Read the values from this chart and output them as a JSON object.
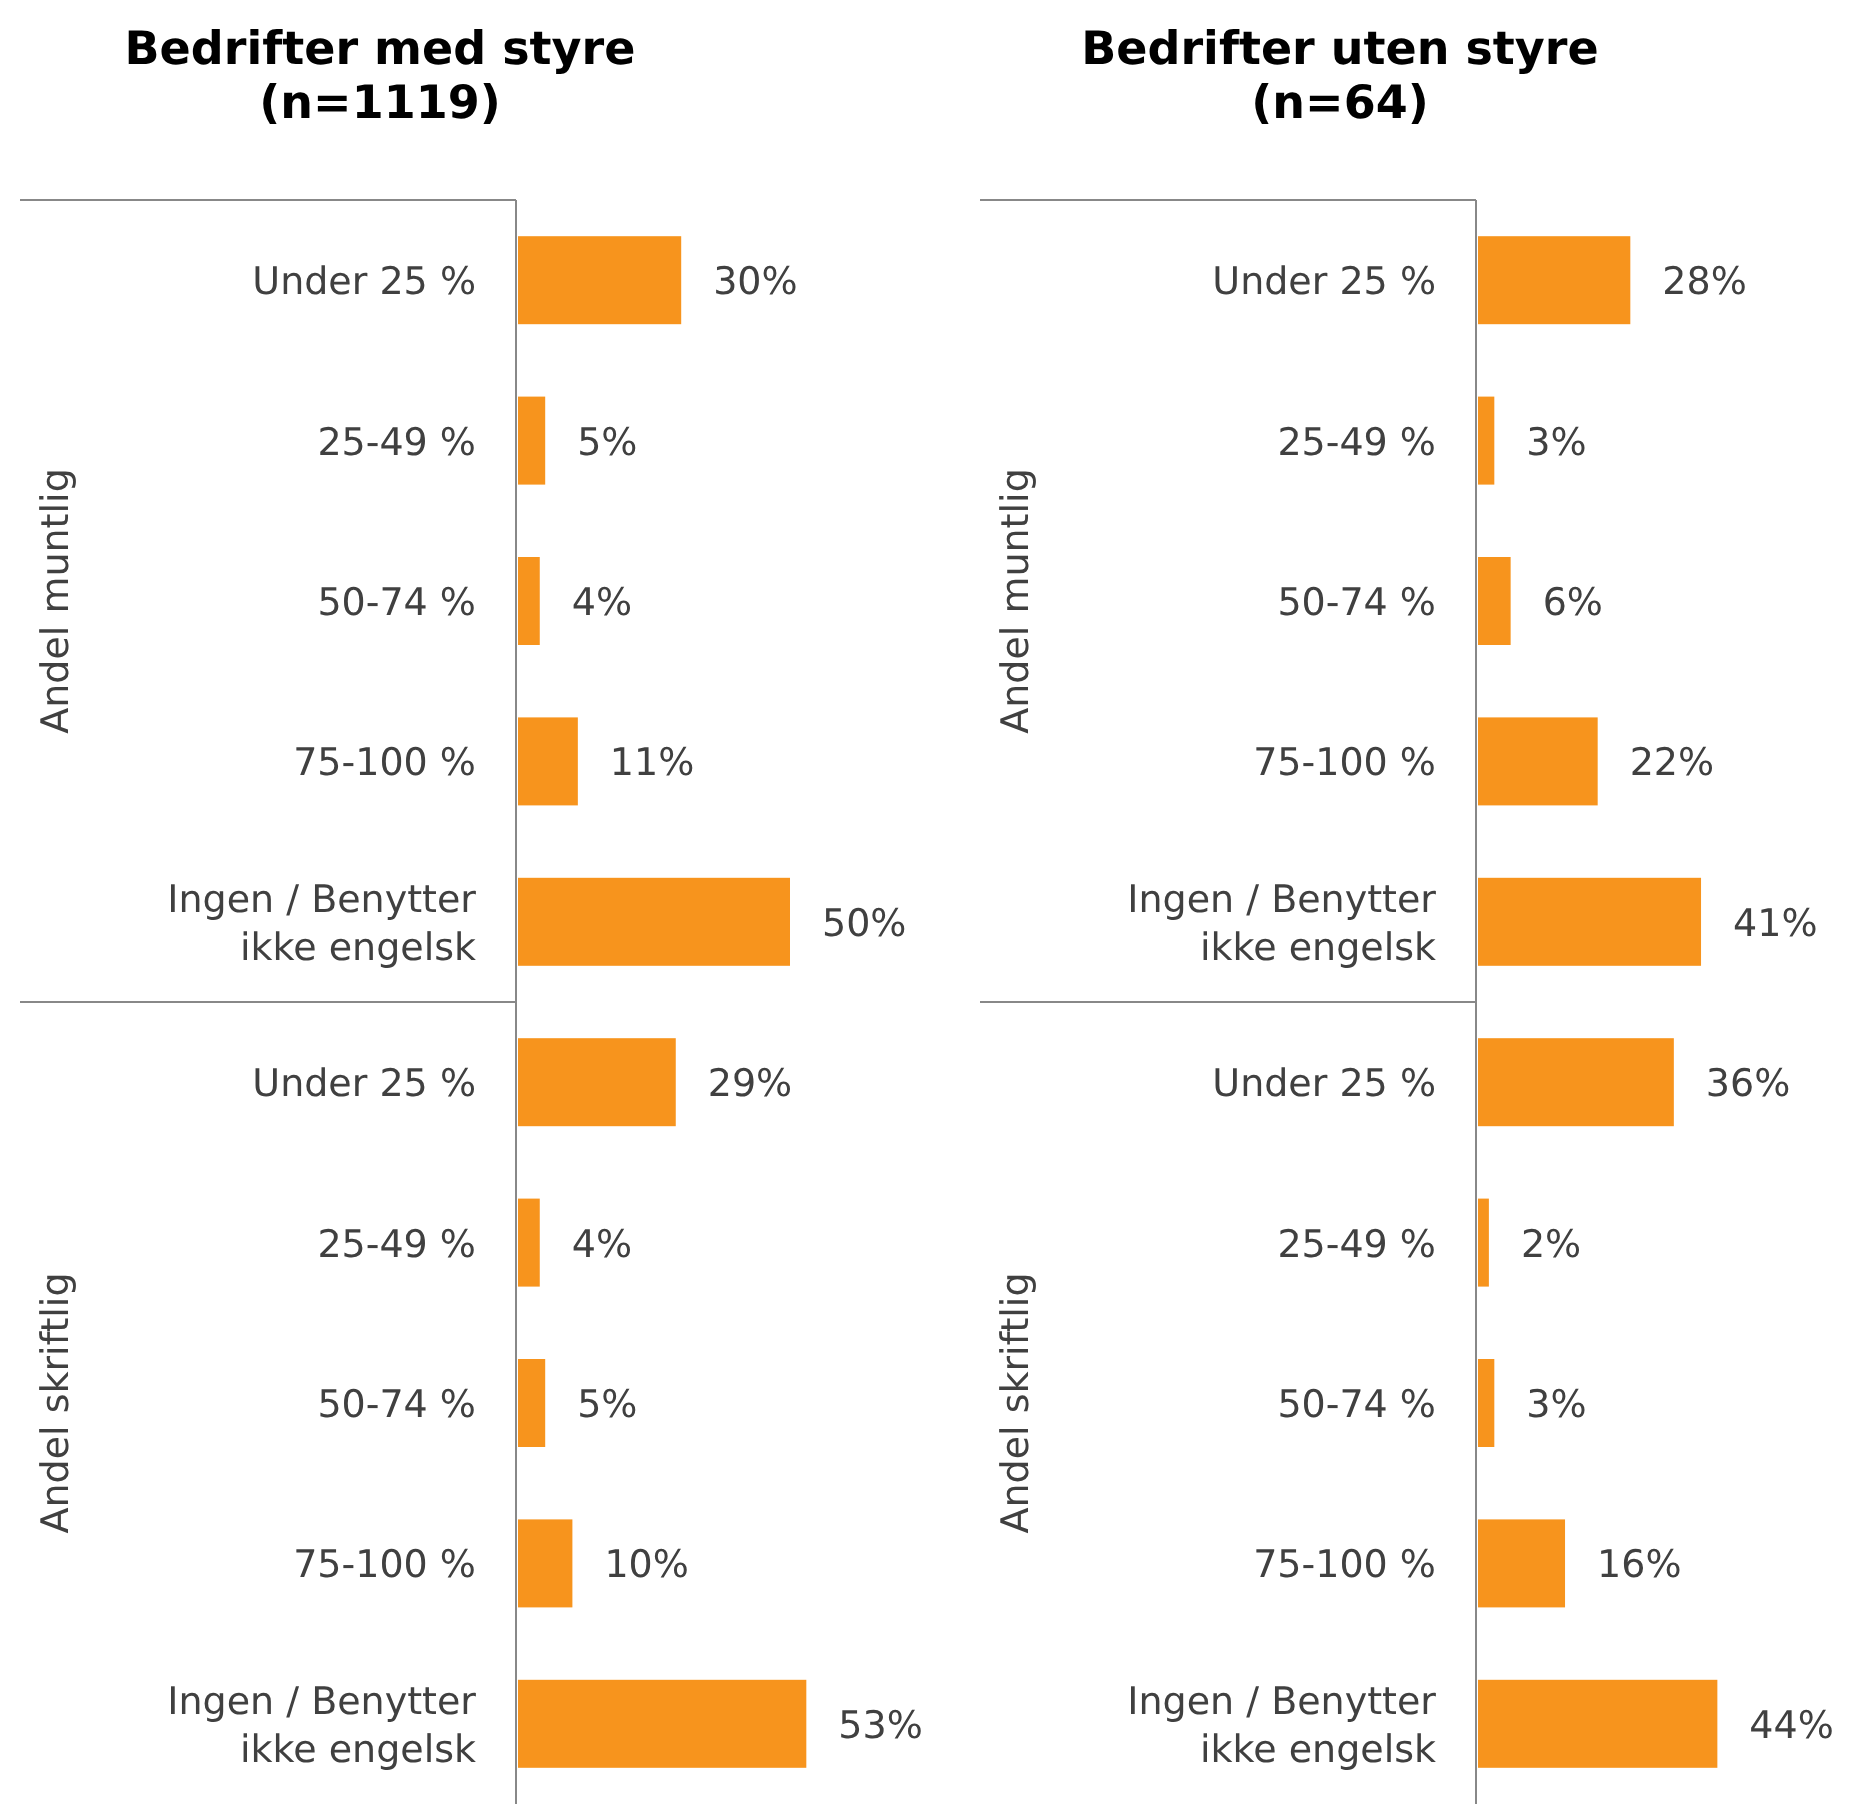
{
  "chart_data": [
    {
      "type": "bar",
      "orientation": "horizontal",
      "title": "Bedrifter med styre\n(n=1119)",
      "categories": [
        "Under 25 %",
        "25-49 %",
        "50-74 %",
        "75-100 %",
        "Ingen / Benytter ikke engelsk",
        "Under 25 %",
        "25-49 %",
        "50-74 %",
        "75-100 %",
        "Ingen / Benytter ikke engelsk"
      ],
      "values": [
        30,
        5,
        4,
        11,
        50,
        29,
        4,
        5,
        10,
        53
      ],
      "value_labels": [
        "30%",
        "5%",
        "4%",
        "11%",
        "50%",
        "29%",
        "4%",
        "5%",
        "10%",
        "53%"
      ],
      "color": "#f7941d",
      "annotations": [
        "Andel muntlig",
        "Andel skriftlig"
      ]
    },
    {
      "type": "bar",
      "orientation": "horizontal",
      "title": "Bedrifter uten styre\n(n=64)",
      "categories": [
        "Under 25 %",
        "25-49 %",
        "50-74 %",
        "75-100 %",
        "Ingen / Benytter ikke engelsk",
        "Under 25 %",
        "25-49 %",
        "50-74 %",
        "75-100 %",
        "Ingen / Benytter ikke engelsk"
      ],
      "values": [
        28,
        3,
        6,
        22,
        41,
        36,
        2,
        3,
        16,
        44
      ],
      "value_labels": [
        "28%",
        "3%",
        "6%",
        "22%",
        "41%",
        "36%",
        "2%",
        "3%",
        "16%",
        "44%"
      ],
      "color": "#f7941d",
      "annotations": [
        "Andel muntlig",
        "Andel skriftlig"
      ]
    }
  ]
}
